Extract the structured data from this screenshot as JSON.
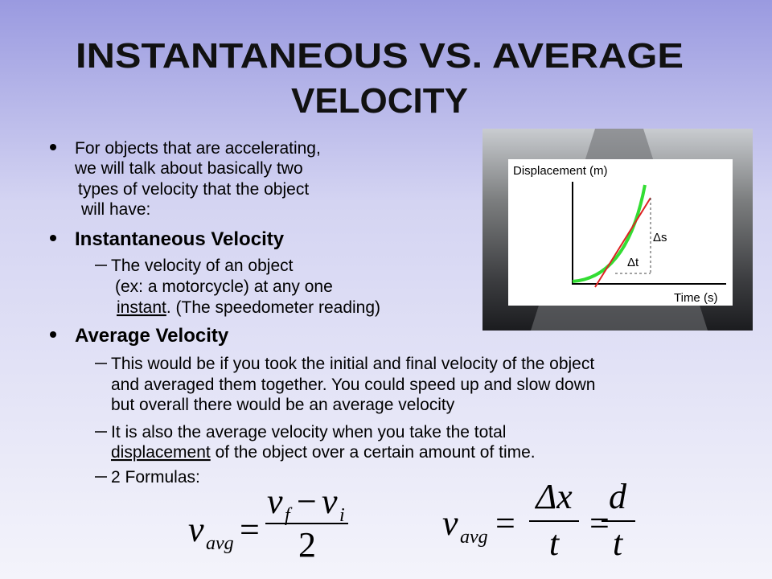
{
  "title": {
    "lines": [
      "INSTANTANEOUS VS. AVERAGE",
      "VELOCITY"
    ]
  },
  "bullets": [
    {
      "lines": [
        [
          "For objects that are accelerating,"
        ],
        [
          "we will talk about basically two"
        ],
        [
          "types of velocity that the object"
        ],
        [
          "will have:"
        ]
      ]
    },
    {
      "heading": "Instantaneous Velocity",
      "items": [
        {
          "lines": [
            [
              "The velocity of an object"
            ],
            [
              "(ex: a motorcycle) at any one"
            ],
            [
              "instant",
              ". (The speedometer reading)"
            ]
          ]
        }
      ]
    },
    {
      "heading": "Average Velocity",
      "items": [
        {
          "lines": [
            [
              "This would be if you took the initial and final velocity of the object"
            ],
            [
              "and averaged them together. You could speed up and slow down"
            ],
            [
              "but overall there would be an average velocity"
            ]
          ]
        },
        {
          "lines": [
            [
              "It is also the average velocity when you take the total"
            ],
            [
              "displacement",
              " of the object over a certain amount of time."
            ]
          ]
        },
        {
          "lines": [
            [
              "2 Formulas:"
            ]
          ]
        }
      ]
    }
  ],
  "figure": {
    "y_label": "Displacement (m)",
    "x_label": "Time (s)",
    "delta_s": "Δs",
    "delta_t": "Δt"
  },
  "formulas": [
    {
      "lhs": {
        "symbol": "v",
        "sub": "avg"
      },
      "equals": "=",
      "numerator": [
        {
          "symbol": "v",
          "sub": "f"
        },
        {
          "symbol": "−"
        },
        {
          "symbol": "v",
          "sub": "i"
        }
      ],
      "denominator": "2"
    },
    {
      "lhs": {
        "symbol": "v",
        "sub": "avg"
      },
      "equals": "=",
      "fractions": [
        {
          "numerator": "Δx",
          "denominator": "t"
        },
        {
          "numerator": "d",
          "denominator": "t"
        }
      ]
    }
  ]
}
